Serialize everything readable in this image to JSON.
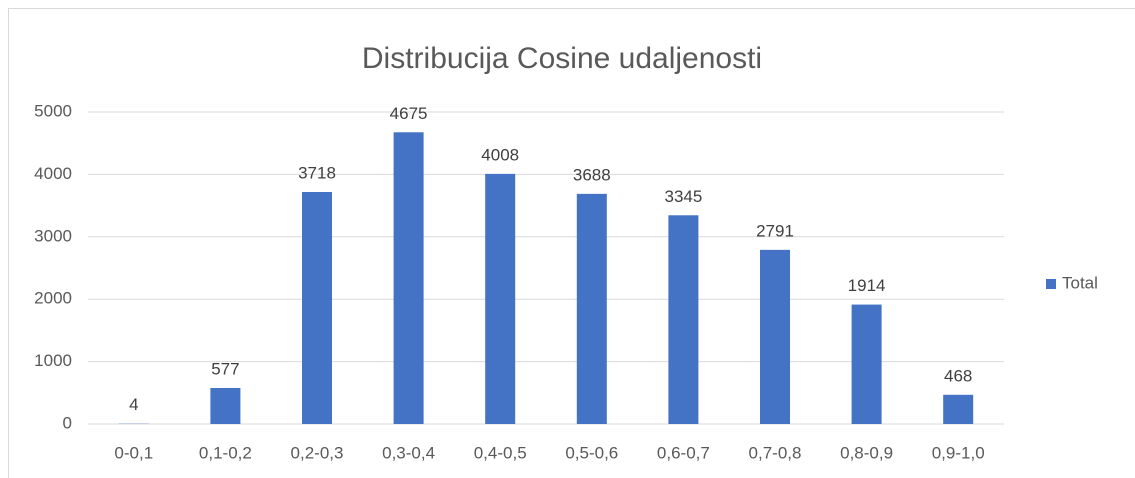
{
  "chart_data": {
    "type": "bar",
    "title": "Distribucija Cosine udaljenosti",
    "categories": [
      "0-0,1",
      "0,1-0,2",
      "0,2-0,3",
      "0,3-0,4",
      "0,4-0,5",
      "0,5-0,6",
      "0,6-0,7",
      "0,7-0,8",
      "0,8-0,9",
      "0,9-1,0"
    ],
    "series": [
      {
        "name": "Total",
        "color": "#4472c4",
        "values": [
          4,
          577,
          3718,
          4675,
          4008,
          3688,
          3345,
          2791,
          1914,
          468
        ]
      }
    ],
    "ylim": [
      0,
      5000
    ],
    "yticks": [
      0,
      1000,
      2000,
      3000,
      4000,
      5000
    ],
    "grid": true,
    "legend": "right"
  }
}
